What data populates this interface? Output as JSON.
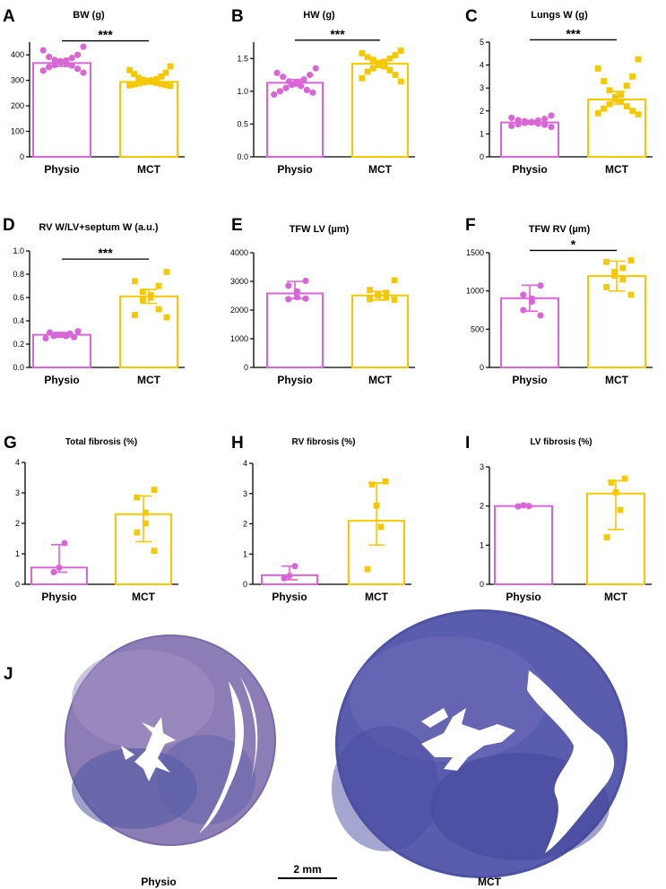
{
  "colors": {
    "physio": "#d966d6",
    "mct": "#f5c800",
    "axis": "#000000"
  },
  "chart_data": [
    {
      "letter": "A",
      "type": "bar",
      "title": "BW (g)",
      "categories": [
        "Physio",
        "MCT"
      ],
      "ylim": [
        0,
        450
      ],
      "yticks": [
        0,
        100,
        200,
        300,
        400
      ],
      "ytick_labels": [
        "0",
        "100",
        "200",
        "300",
        "400"
      ],
      "means": [
        368,
        294
      ],
      "err_low": [
        355,
        286
      ],
      "err_high": [
        381,
        302
      ],
      "points": [
        [
          432,
          418,
          400,
          392,
          388,
          380,
          378,
          375,
          370,
          365,
          360,
          358,
          352,
          345,
          338,
          330
        ],
        [
          355,
          340,
          330,
          325,
          315,
          310,
          305,
          302,
          300,
          298,
          296,
          294,
          292,
          290,
          288,
          286,
          284,
          282,
          280,
          278
        ]
      ],
      "sig": "***",
      "sig_y": 455
    },
    {
      "letter": "B",
      "type": "bar",
      "title": "HW (g)",
      "categories": [
        "Physio",
        "MCT"
      ],
      "ylim": [
        0,
        1.75
      ],
      "yticks": [
        0,
        0.5,
        1.0,
        1.5
      ],
      "ytick_labels": [
        "0.0",
        "0.5",
        "1.0",
        "1.5"
      ],
      "means": [
        1.13,
        1.42
      ],
      "err_low": [
        1.08,
        1.37
      ],
      "err_high": [
        1.18,
        1.47
      ],
      "points": [
        [
          1.35,
          1.28,
          1.25,
          1.22,
          1.18,
          1.15,
          1.14,
          1.12,
          1.1,
          1.08,
          1.05,
          1.02,
          1.0,
          0.98,
          0.95
        ],
        [
          1.62,
          1.58,
          1.55,
          1.52,
          1.5,
          1.48,
          1.45,
          1.42,
          1.4,
          1.38,
          1.35,
          1.32,
          1.3,
          1.25,
          1.2,
          1.15
        ]
      ],
      "sig": "***",
      "sig_y": 1.78
    },
    {
      "letter": "C",
      "type": "bar",
      "title": "Lungs W (g)",
      "categories": [
        "Physio",
        "MCT"
      ],
      "ylim": [
        0,
        5
      ],
      "yticks": [
        0,
        1,
        2,
        3,
        4,
        5
      ],
      "ytick_labels": [
        "0",
        "1",
        "2",
        "3",
        "4",
        "5"
      ],
      "means": [
        1.5,
        2.5
      ],
      "err_low": [
        1.42,
        2.3
      ],
      "err_high": [
        1.58,
        2.85
      ],
      "points": [
        [
          1.8,
          1.7,
          1.65,
          1.6,
          1.58,
          1.55,
          1.52,
          1.5,
          1.48,
          1.45,
          1.42,
          1.4,
          1.35,
          1.3
        ],
        [
          4.25,
          3.85,
          3.5,
          3.3,
          3.1,
          2.9,
          2.7,
          2.6,
          2.5,
          2.4,
          2.3,
          2.2,
          2.1,
          2.0,
          1.9,
          1.85
        ]
      ],
      "sig": "***",
      "sig_y": 5.1
    },
    {
      "letter": "D",
      "type": "bar",
      "title": "RV W/LV+septum W (a.u.)",
      "categories": [
        "Physio",
        "MCT"
      ],
      "ylim": [
        0,
        1.0
      ],
      "yticks": [
        0,
        0.2,
        0.4,
        0.6,
        0.8,
        1.0
      ],
      "ytick_labels": [
        "0.0",
        "0.2",
        "0.4",
        "0.6",
        "0.8",
        "1.0"
      ],
      "means": [
        0.28,
        0.61
      ],
      "err_low": [
        0.26,
        0.55
      ],
      "err_high": [
        0.3,
        0.67
      ],
      "points": [
        [
          0.31,
          0.3,
          0.29,
          0.28,
          0.28,
          0.27,
          0.27,
          0.26,
          0.25
        ],
        [
          0.82,
          0.74,
          0.7,
          0.65,
          0.62,
          0.6,
          0.58,
          0.5,
          0.45,
          0.43
        ]
      ],
      "sig": "***",
      "sig_y": 0.93
    },
    {
      "letter": "E",
      "type": "bar",
      "title": "TFW LV (µm)",
      "categories": [
        "Physio",
        "MCT"
      ],
      "ylim": [
        0,
        4000
      ],
      "yticks": [
        0,
        1000,
        2000,
        3000,
        4000
      ],
      "ytick_labels": [
        "0",
        "1000",
        "2000",
        "3000",
        "4000"
      ],
      "means": [
        2580,
        2510
      ],
      "err_low": [
        2400,
        2350
      ],
      "err_high": [
        3000,
        2650
      ],
      "points": [
        [
          3020,
          2850,
          2650,
          2450,
          2380,
          2400
        ],
        [
          3040,
          2700,
          2600,
          2550,
          2500,
          2460,
          2380,
          2360
        ]
      ],
      "sig": "",
      "sig_y": 0
    },
    {
      "letter": "F",
      "type": "bar",
      "title": "TFW RV (µm)",
      "categories": [
        "Physio",
        "MCT"
      ],
      "ylim": [
        0,
        1500
      ],
      "yticks": [
        0,
        500,
        1000,
        1500
      ],
      "ytick_labels": [
        "0",
        "500",
        "1000",
        "1500"
      ],
      "means": [
        905,
        1195
      ],
      "err_low": [
        735,
        1000
      ],
      "err_high": [
        1075,
        1390
      ],
      "points": [
        [
          1070,
          950,
          900,
          860,
          750,
          680
        ],
        [
          1400,
          1380,
          1300,
          1250,
          1200,
          1150,
          1050,
          950
        ]
      ],
      "sig": "*",
      "sig_y": 1530
    },
    {
      "letter": "G",
      "type": "bar",
      "title": "Total fibrosis (%)",
      "categories": [
        "Physio",
        "MCT"
      ],
      "ylim": [
        0,
        4
      ],
      "yticks": [
        0,
        1,
        2,
        3,
        4
      ],
      "ytick_labels": [
        "0",
        "1",
        "2",
        "3",
        "4"
      ],
      "means": [
        0.55,
        2.3
      ],
      "err_low": [
        0.4,
        1.4
      ],
      "err_high": [
        1.3,
        2.9
      ],
      "points": [
        [
          1.35,
          0.55,
          0.4
        ],
        [
          3.1,
          2.85,
          2.35,
          2.0,
          1.7,
          1.1
        ]
      ],
      "sig": "",
      "sig_y": 0
    },
    {
      "letter": "H",
      "type": "bar",
      "title": "RV fibrosis (%)",
      "categories": [
        "Physio",
        "MCT"
      ],
      "ylim": [
        0,
        4
      ],
      "yticks": [
        0,
        1,
        2,
        3,
        4
      ],
      "ytick_labels": [
        "0",
        "1",
        "2",
        "3",
        "4"
      ],
      "means": [
        0.3,
        2.1
      ],
      "err_low": [
        0.15,
        1.3
      ],
      "err_high": [
        0.6,
        3.35
      ],
      "points": [
        [
          0.6,
          0.28,
          0.2
        ],
        [
          3.4,
          3.3,
          2.6,
          1.9,
          0.5
        ]
      ],
      "sig": "",
      "sig_y": 0
    },
    {
      "letter": "I",
      "type": "bar",
      "title": "LV fibrosis (%)",
      "categories": [
        "Physio",
        "MCT"
      ],
      "ylim": [
        0,
        3
      ],
      "yticks": [
        0,
        1,
        2,
        3
      ],
      "ytick_labels": [
        "0",
        "1",
        "2",
        "3"
      ],
      "means": [
        2.0,
        2.32
      ],
      "err_low": [
        1.98,
        1.4
      ],
      "err_high": [
        2.02,
        2.65
      ],
      "points": [
        [
          2.0,
          2.02,
          1.99
        ],
        [
          2.7,
          2.6,
          2.35,
          1.9,
          1.2
        ]
      ],
      "sig": "",
      "sig_y": 0
    }
  ],
  "panel_j": {
    "letter": "J",
    "physio_label": "Physio",
    "mct_label": "MCT",
    "scale_label": "2 mm"
  }
}
